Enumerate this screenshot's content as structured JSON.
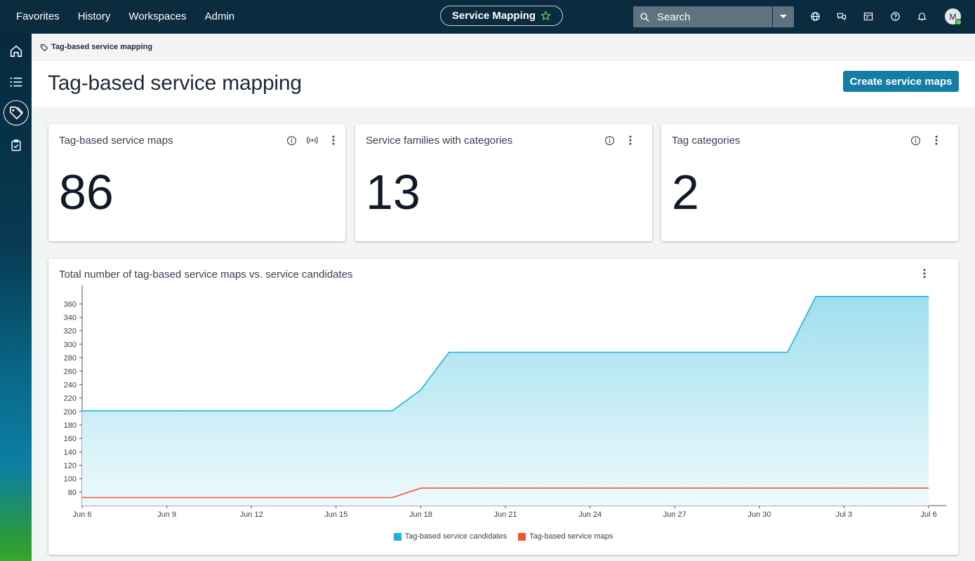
{
  "nav": {
    "menu": [
      "Favorites",
      "History",
      "Workspaces",
      "Admin"
    ],
    "app_title": "Service Mapping",
    "search_placeholder": "Search",
    "avatar_initial": "M",
    "icons": [
      "globe-icon",
      "chat-icon",
      "inbox-icon",
      "help-icon",
      "bell-icon"
    ]
  },
  "siderail": {
    "items": [
      "home-icon",
      "list-icon",
      "tag-icon",
      "clipboard-check-icon"
    ],
    "active": "tag-icon"
  },
  "breadcrumb": {
    "label": "Tag-based service mapping"
  },
  "page": {
    "title": "Tag-based service mapping",
    "create_button": "Create service maps"
  },
  "cards": [
    {
      "title": "Tag-based service maps",
      "value": "86",
      "icons": [
        "info-icon",
        "broadcast-icon",
        "more-icon"
      ]
    },
    {
      "title": "Service families with categories",
      "value": "13",
      "icons": [
        "info-icon",
        "more-icon"
      ]
    },
    {
      "title": "Tag categories",
      "value": "2",
      "icons": [
        "info-icon",
        "more-icon"
      ]
    }
  ],
  "chart_title": "Total number of tag-based service maps vs. service candidates",
  "colors": {
    "candidates": "#1bb4d6",
    "maps": "#f25430",
    "nav_bg": "#0b2b3f",
    "primary": "#137da3"
  },
  "chart_data": {
    "type": "area",
    "x_tick_labels": [
      "Jun 6",
      "Jun 9",
      "Jun 12",
      "Jun 15",
      "Jun 18",
      "Jun 21",
      "Jun 24",
      "Jun 27",
      "Jun 30",
      "Jul 3",
      "Jul 6"
    ],
    "y_tick_labels": [
      80,
      100,
      120,
      140,
      160,
      180,
      200,
      220,
      240,
      260,
      280,
      300,
      320,
      340,
      360
    ],
    "x_range": [
      "Jun 6",
      "Jul 6"
    ],
    "ylim": [
      60,
      375
    ],
    "grid": false,
    "legend_position": "bottom-center",
    "series": [
      {
        "name": "Tag-based service candidates",
        "points": [
          [
            "Jun 6",
            201
          ],
          [
            "Jun 17",
            201
          ],
          [
            "Jun 18",
            232
          ],
          [
            "Jun 19",
            288
          ],
          [
            "Jul 1",
            288
          ],
          [
            "Jul 2",
            371
          ],
          [
            "Jul 6",
            371
          ]
        ]
      },
      {
        "name": "Tag-based service maps",
        "points": [
          [
            "Jun 6",
            72
          ],
          [
            "Jun 17",
            72
          ],
          [
            "Jun 18",
            86
          ],
          [
            "Jul 6",
            86
          ]
        ]
      }
    ]
  }
}
